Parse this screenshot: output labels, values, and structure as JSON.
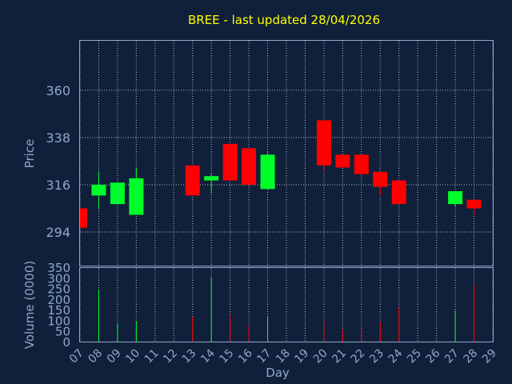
{
  "chart_data": {
    "type": "candlestick",
    "title": "BREE - last updated 28/04/2026",
    "xlabel": "Day",
    "price_panel": {
      "ylabel": "Price",
      "yticks": [
        "360",
        "338",
        "316",
        "294"
      ],
      "ylim": [
        278,
        383
      ]
    },
    "volume_panel": {
      "ylabel": "Volume (0000)",
      "yticks": [
        "350",
        "300",
        "250",
        "200",
        "150",
        "100",
        "50",
        "0"
      ],
      "ylim": [
        0,
        350
      ]
    },
    "x_ticks": [
      "07",
      "08",
      "09",
      "10",
      "11",
      "12",
      "13",
      "14",
      "15",
      "16",
      "17",
      "18",
      "19",
      "20",
      "21",
      "22",
      "23",
      "24",
      "25",
      "26",
      "27",
      "28",
      "29"
    ],
    "up_color": "#00ff2a",
    "down_color": "#ff0000",
    "candles": [
      {
        "day": "07",
        "open": 305,
        "high": 305,
        "low": 296,
        "close": 296
      },
      {
        "day": "08",
        "open": 311,
        "high": 322,
        "low": 305,
        "close": 316
      },
      {
        "day": "09",
        "open": 307,
        "high": 317,
        "low": 307,
        "close": 317
      },
      {
        "day": "10",
        "open": 302,
        "high": 324,
        "low": 302,
        "close": 319
      },
      {
        "day": "13",
        "open": 325,
        "high": 325,
        "low": 311,
        "close": 311
      },
      {
        "day": "14",
        "open": 318,
        "high": 321,
        "low": 312,
        "close": 320
      },
      {
        "day": "15",
        "open": 335,
        "high": 335,
        "low": 318,
        "close": 318
      },
      {
        "day": "16",
        "open": 333,
        "high": 333,
        "low": 316,
        "close": 316
      },
      {
        "day": "17",
        "open": 314,
        "high": 331,
        "low": 314,
        "close": 330
      },
      {
        "day": "20",
        "open": 346,
        "high": 346,
        "low": 322,
        "close": 325
      },
      {
        "day": "21",
        "open": 330,
        "high": 330,
        "low": 324,
        "close": 324
      },
      {
        "day": "22",
        "open": 330,
        "high": 330,
        "low": 319,
        "close": 321
      },
      {
        "day": "23",
        "open": 322,
        "high": 322,
        "low": 311,
        "close": 315
      },
      {
        "day": "24",
        "open": 318,
        "high": 318,
        "low": 307,
        "close": 307
      },
      {
        "day": "27",
        "open": 307,
        "high": 313,
        "low": 306,
        "close": 313
      },
      {
        "day": "28",
        "open": 309,
        "high": 309,
        "low": 302,
        "close": 305
      }
    ],
    "volumes": [
      {
        "day": "07",
        "value": 0
      },
      {
        "day": "08",
        "value": 250
      },
      {
        "day": "09",
        "value": 90
      },
      {
        "day": "10",
        "value": 100
      },
      {
        "day": "13",
        "value": 120
      },
      {
        "day": "14",
        "value": 305
      },
      {
        "day": "15",
        "value": 130
      },
      {
        "day": "16",
        "value": 80
      },
      {
        "day": "17",
        "value": 120
      },
      {
        "day": "20",
        "value": 100
      },
      {
        "day": "21",
        "value": 60
      },
      {
        "day": "22",
        "value": 60
      },
      {
        "day": "23",
        "value": 95
      },
      {
        "day": "24",
        "value": 165
      },
      {
        "day": "27",
        "value": 150
      },
      {
        "day": "28",
        "value": 275
      }
    ]
  }
}
